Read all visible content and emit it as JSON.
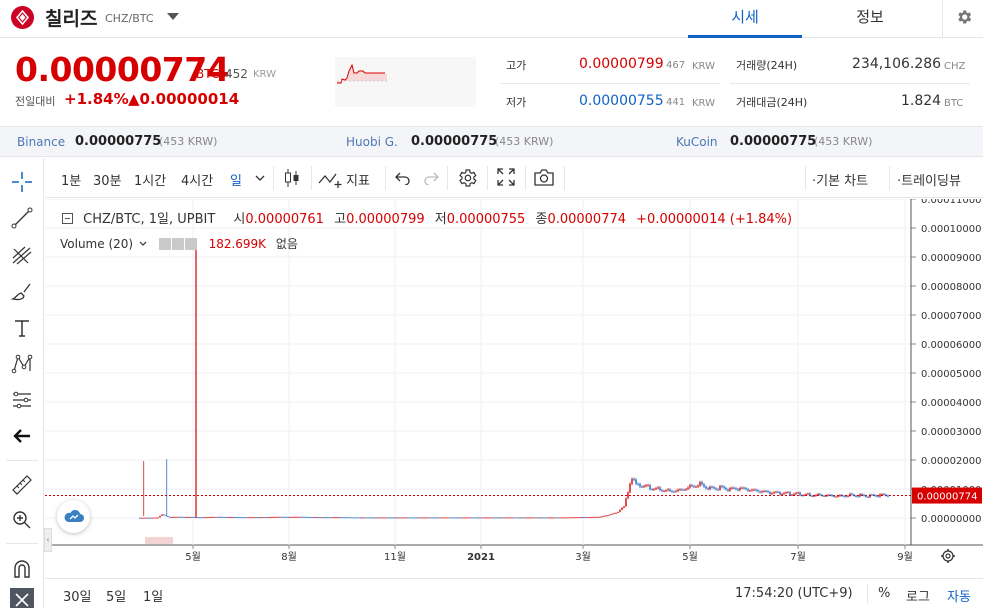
{
  "header": {
    "coin_name": "칠리즈",
    "pair": "CHZ/BTC",
    "tabs": [
      {
        "label": "시세",
        "active": true
      },
      {
        "label": "정보",
        "active": false
      }
    ],
    "icons": {
      "logo": "chiliz-logo",
      "dropdown": "chevron-down-icon",
      "settings": "gear-icon"
    }
  },
  "price": {
    "current": "0.00000774",
    "unit": "BTC",
    "krw": "452",
    "krw_unit": "KRW",
    "change_label": "전일대비",
    "change_pct": "+1.84%",
    "change_abs": "▲0.00000014"
  },
  "stats": {
    "high_label": "고가",
    "high": "0.00000799",
    "high_krw": "467",
    "low_label": "저가",
    "low": "0.00000755",
    "low_krw": "441",
    "krw_unit": "KRW",
    "volume_label": "거래량(24H)",
    "volume": "234,106.286",
    "volume_unit": "CHZ",
    "amount_label": "거래대금(24H)",
    "amount": "1.824",
    "amount_unit": "BTC"
  },
  "exchanges": [
    {
      "name": "Binance",
      "price": "0.00000775",
      "krw": "(453 KRW)"
    },
    {
      "name": "Huobi G.",
      "price": "0.00000775",
      "krw": "(453 KRW)"
    },
    {
      "name": "KuCoin",
      "price": "0.00000775",
      "krw": "(453 KRW)"
    }
  ],
  "toolbar": {
    "intervals": [
      "1분",
      "30분",
      "1시간",
      "4시간"
    ],
    "active_interval": "일",
    "indicator_label": "지표",
    "basic_chart": "·기본 차트",
    "trading_view": "·트레이딩뷰"
  },
  "legend": {
    "symbol": "CHZ/BTC, 1일, UPBIT",
    "open_label": "시",
    "open": "0.00000761",
    "high_label": "고",
    "high": "0.00000799",
    "low_label": "저",
    "low": "0.00000755",
    "close_label": "종",
    "close": "0.00000774",
    "change": "+0.00000014 (+1.84%)",
    "volume_label": "Volume (20)",
    "volume_value": "182.699K",
    "volume_extra": "없음"
  },
  "chart_data": {
    "type": "candlestick",
    "y_ticks": [
      "0.00011000",
      "0.00010000",
      "0.00009000",
      "0.00008000",
      "0.00007000",
      "0.00006000",
      "0.00005000",
      "0.00004000",
      "0.00003000",
      "0.00002000",
      "0.00001000",
      "0.00000000"
    ],
    "x_ticks": [
      "5월",
      "8월",
      "11월",
      "2021",
      "3월",
      "5월",
      "7월",
      "9월"
    ],
    "last_price_label": "0.00000774",
    "ylim": [
      0,
      0.000115
    ],
    "series": [
      {
        "x": [
          0,
          10,
          18,
          22,
          28,
          40,
          60,
          80,
          100,
          120,
          140,
          160,
          180,
          200,
          220,
          240,
          260,
          280,
          300,
          320,
          340,
          360,
          380,
          400,
          420,
          440,
          460,
          470,
          478,
          484,
          488,
          492,
          496,
          500,
          510,
          520,
          530,
          540,
          550,
          560,
          570,
          580,
          590,
          600,
          610,
          620,
          630,
          640,
          650,
          660,
          670,
          680,
          690,
          700,
          710,
          720,
          730,
          740,
          750
        ],
        "values": [
          1e-07,
          1e-07,
          2e-07,
          1.3e-06,
          4e-07,
          4e-07,
          3e-07,
          4e-07,
          3e-07,
          3e-07,
          4e-07,
          4e-07,
          3e-07,
          3e-07,
          2e-07,
          2e-07,
          2e-07,
          2e-07,
          2e-07,
          2e-07,
          2e-07,
          2e-07,
          2e-07,
          2e-07,
          2e-07,
          3e-07,
          4e-07,
          1.2e-06,
          2e-06,
          4e-06,
          9e-06,
          1.4e-05,
          1.25e-05,
          1.15e-05,
          1.05e-05,
          1e-05,
          9.5e-06,
          9.8e-06,
          1.1e-05,
          1.18e-05,
          1.02e-05,
          1.04e-05,
          9.8e-06,
          1e-05,
          9.4e-06,
          9e-06,
          8.6e-06,
          8.5e-06,
          8.4e-06,
          8.3e-06,
          8e-06,
          8.1e-06,
          7.9e-06,
          7.7e-06,
          8e-06,
          7.8e-06,
          7.6e-06,
          7.8e-06,
          7.7e-06
        ]
      }
    ]
  },
  "bottom": {
    "ranges": [
      "30일",
      "5일",
      "1일"
    ],
    "time": "17:54:20 (UTC+9)",
    "percent": "%",
    "log": "로그",
    "auto": "자동"
  },
  "colors": {
    "up": "#d60000",
    "down": "#1261c4",
    "accent": "#1261c4",
    "brand": "#cd0124"
  }
}
